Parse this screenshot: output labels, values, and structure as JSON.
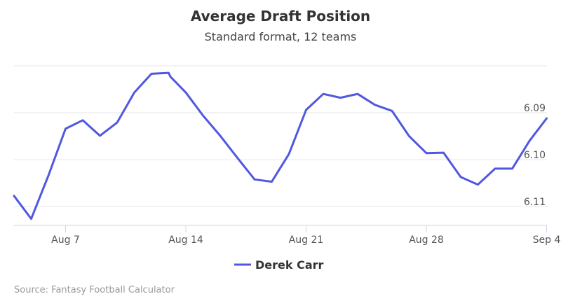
{
  "chart_data": {
    "type": "line",
    "title": "Average Draft Position",
    "subtitle": "Standard format, 12 teams",
    "x_labels": [
      "Aug 7",
      "Aug 14",
      "Aug 21",
      "Aug 28",
      "Sep 4"
    ],
    "y_labels": [
      "6.09",
      "6.10",
      "6.11"
    ],
    "ylim": [
      6.114,
      6.08
    ],
    "grid": true,
    "legend_position": "bottom-center",
    "series": [
      {
        "name": "Derek Carr",
        "color": "#5058e0",
        "points": [
          {
            "x": 0.0,
            "y": 6.1077
          },
          {
            "x": 1.0,
            "y": 6.1126
          },
          {
            "x": 2.0,
            "y": 6.1034
          },
          {
            "x": 3.0,
            "y": 6.0934
          },
          {
            "x": 4.0,
            "y": 6.0916
          },
          {
            "x": 5.0,
            "y": 6.0949
          },
          {
            "x": 6.0,
            "y": 6.0921
          },
          {
            "x": 7.0,
            "y": 6.0857
          },
          {
            "x": 8.0,
            "y": 6.0817
          },
          {
            "x": 9.0,
            "y": 6.0815
          },
          {
            "x": 9.1,
            "y": 6.0823
          },
          {
            "x": 10.0,
            "y": 6.0857
          },
          {
            "x": 11.0,
            "y": 6.0906
          },
          {
            "x": 12.0,
            "y": 6.0949
          },
          {
            "x": 13.0,
            "y": 6.0996
          },
          {
            "x": 14.0,
            "y": 6.1042
          },
          {
            "x": 15.0,
            "y": 6.1047
          },
          {
            "x": 16.0,
            "y": 6.0988
          },
          {
            "x": 17.0,
            "y": 6.0894
          },
          {
            "x": 18.0,
            "y": 6.086
          },
          {
            "x": 19.0,
            "y": 6.0868
          },
          {
            "x": 20.0,
            "y": 6.086
          },
          {
            "x": 21.0,
            "y": 6.0883
          },
          {
            "x": 22.0,
            "y": 6.0896
          },
          {
            "x": 23.0,
            "y": 6.095
          },
          {
            "x": 24.0,
            "y": 6.0986
          },
          {
            "x": 25.0,
            "y": 6.0985
          },
          {
            "x": 26.0,
            "y": 6.1037
          },
          {
            "x": 27.0,
            "y": 6.1053
          },
          {
            "x": 28.0,
            "y": 6.1019
          },
          {
            "x": 29.0,
            "y": 6.1019
          },
          {
            "x": 30.0,
            "y": 6.096
          },
          {
            "x": 31.0,
            "y": 6.0912
          }
        ]
      }
    ]
  },
  "credit": "Source: Fantasy Football Calculator"
}
